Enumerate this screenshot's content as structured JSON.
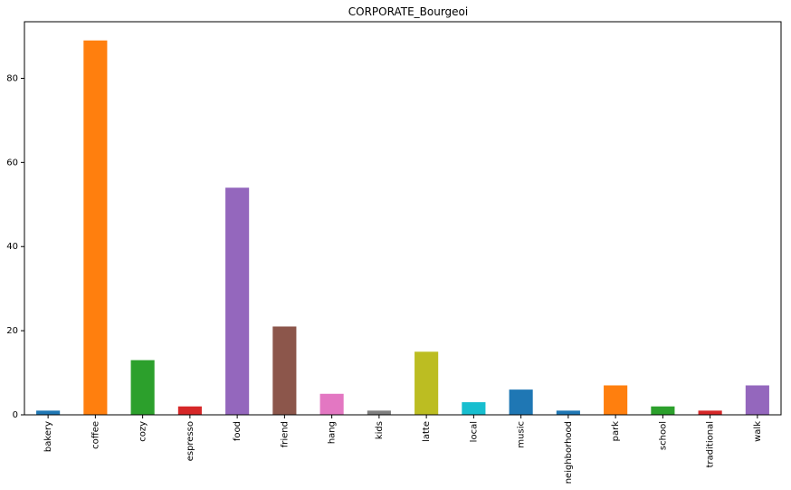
{
  "chart_data": {
    "type": "bar",
    "title": "CORPORATE_Bourgeoi",
    "xlabel": "",
    "ylabel": "",
    "categories": [
      "bakery",
      "coffee",
      "cozy",
      "espresso",
      "food",
      "friend",
      "hang",
      "kids",
      "latte",
      "local",
      "music",
      "neighborhood",
      "park",
      "school",
      "traditional",
      "walk"
    ],
    "values": [
      1,
      89,
      13,
      2,
      54,
      21,
      5,
      1,
      15,
      3,
      6,
      1,
      7,
      2,
      1,
      7
    ],
    "colors": [
      "#1f77b4",
      "#ff7f0e",
      "#2ca02c",
      "#d62728",
      "#9467bd",
      "#8c564b",
      "#e377c2",
      "#7f7f7f",
      "#bcbd22",
      "#17becf",
      "#1f77b4",
      "#1f77b4",
      "#ff7f0e",
      "#2ca02c",
      "#d62728",
      "#9467bd"
    ],
    "ylim": [
      0,
      93.45
    ],
    "yticks": [
      0,
      20,
      40,
      60,
      80
    ],
    "grid": false,
    "legend": "none"
  }
}
